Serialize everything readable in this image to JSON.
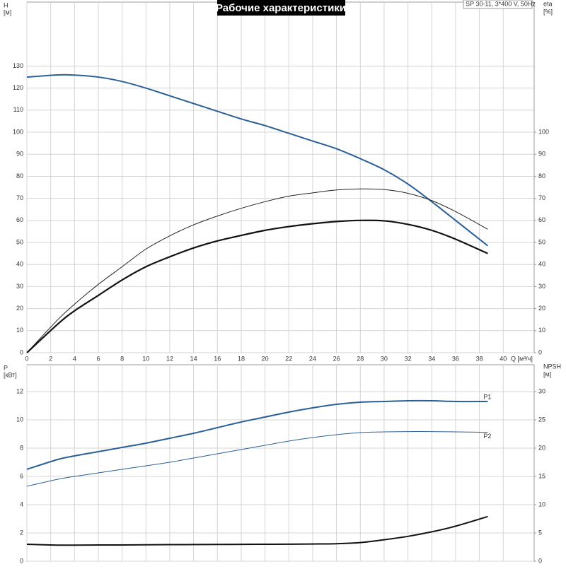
{
  "chart_data": [
    {
      "type": "line",
      "title": "Рабочие характеристики",
      "info": "SP 30-11, 3*400 V, 50Hz",
      "ylabel": "H",
      "ylabel_unit": "[м]",
      "y2label": "eta",
      "y2label_unit": "[%]",
      "xlabel": "Q [м³/ч]",
      "x": [
        0,
        2.6,
        4,
        6,
        8,
        10,
        12,
        14,
        16,
        18,
        20,
        22,
        24,
        26,
        28,
        30,
        32,
        34,
        36,
        38.7
      ],
      "xlim": [
        0,
        42.6
      ],
      "xticks": [
        0,
        2,
        4,
        6,
        8,
        10,
        12,
        14,
        16,
        18,
        20,
        22,
        24,
        26,
        28,
        30,
        32,
        34,
        36,
        38,
        40
      ],
      "ylim": [
        0,
        159
      ],
      "yticks": [
        0,
        10,
        20,
        30,
        40,
        50,
        60,
        70,
        80,
        90,
        100,
        110,
        120,
        130
      ],
      "y2lim": [
        0,
        159
      ],
      "y2ticks": [
        0,
        10,
        20,
        30,
        40,
        50,
        60,
        70,
        80,
        90,
        100
      ],
      "grid": true,
      "series": [
        {
          "color": "#2b5f96",
          "width": 2,
          "values": [
            125,
            126,
            125.9,
            125,
            123,
            120,
            116.5,
            113,
            109.5,
            106,
            103,
            99.5,
            96,
            92.5,
            88,
            83,
            76.5,
            68.5,
            60,
            48.5
          ]
        },
        {
          "color": "#222222",
          "width": 1,
          "axis": "y2",
          "values": [
            0,
            15,
            22,
            31,
            39,
            47,
            53,
            58,
            62,
            65.5,
            68.5,
            71,
            72.5,
            73.8,
            74.3,
            74,
            72.3,
            69,
            64,
            56
          ]
        },
        {
          "color": "#111111",
          "width": 2.2,
          "axis": "y2",
          "values": [
            0,
            13,
            19,
            26,
            33,
            39,
            43.5,
            47.5,
            50.7,
            53.2,
            55.5,
            57.2,
            58.5,
            59.5,
            60,
            59.8,
            58.2,
            55.5,
            51.5,
            45
          ]
        }
      ]
    },
    {
      "type": "line",
      "ylabel": "P",
      "ylabel_unit": "[кВт]",
      "y2label": "NPSH",
      "y2label_unit": "[м]",
      "x": [
        0,
        2.6,
        4,
        6,
        8,
        10,
        12,
        14,
        16,
        18,
        20,
        22,
        24,
        26,
        28,
        30,
        32,
        34,
        36,
        38.7
      ],
      "xlim": [
        0,
        42.6
      ],
      "ylim": [
        0,
        13.9
      ],
      "yticks": [
        0,
        2,
        4,
        6,
        8,
        10,
        12
      ],
      "y2lim": [
        0,
        34.75
      ],
      "y2ticks": [
        0,
        5,
        10,
        15,
        20,
        25,
        30
      ],
      "grid": true,
      "series": [
        {
          "name": "P1",
          "color": "#2b5f96",
          "width": 2,
          "values": [
            6.5,
            7.2,
            7.45,
            7.75,
            8.05,
            8.35,
            8.7,
            9.05,
            9.45,
            9.85,
            10.2,
            10.55,
            10.85,
            11.1,
            11.25,
            11.3,
            11.35,
            11.35,
            11.3,
            11.3
          ]
        },
        {
          "name": "P2",
          "color": "#2b5f96",
          "width": 1,
          "values": [
            5.3,
            5.8,
            6.0,
            6.25,
            6.5,
            6.75,
            7.0,
            7.3,
            7.6,
            7.9,
            8.2,
            8.5,
            8.75,
            8.95,
            9.1,
            9.15,
            9.17,
            9.17,
            9.15,
            9.12
          ]
        },
        {
          "color": "#111111",
          "width": 2,
          "axis": "y2",
          "values": [
            3.0,
            2.85,
            2.85,
            2.87,
            2.88,
            2.9,
            2.93,
            2.95,
            2.97,
            2.98,
            3.0,
            3.02,
            3.05,
            3.1,
            3.3,
            3.8,
            4.4,
            5.2,
            6.2,
            7.9
          ]
        }
      ]
    }
  ]
}
